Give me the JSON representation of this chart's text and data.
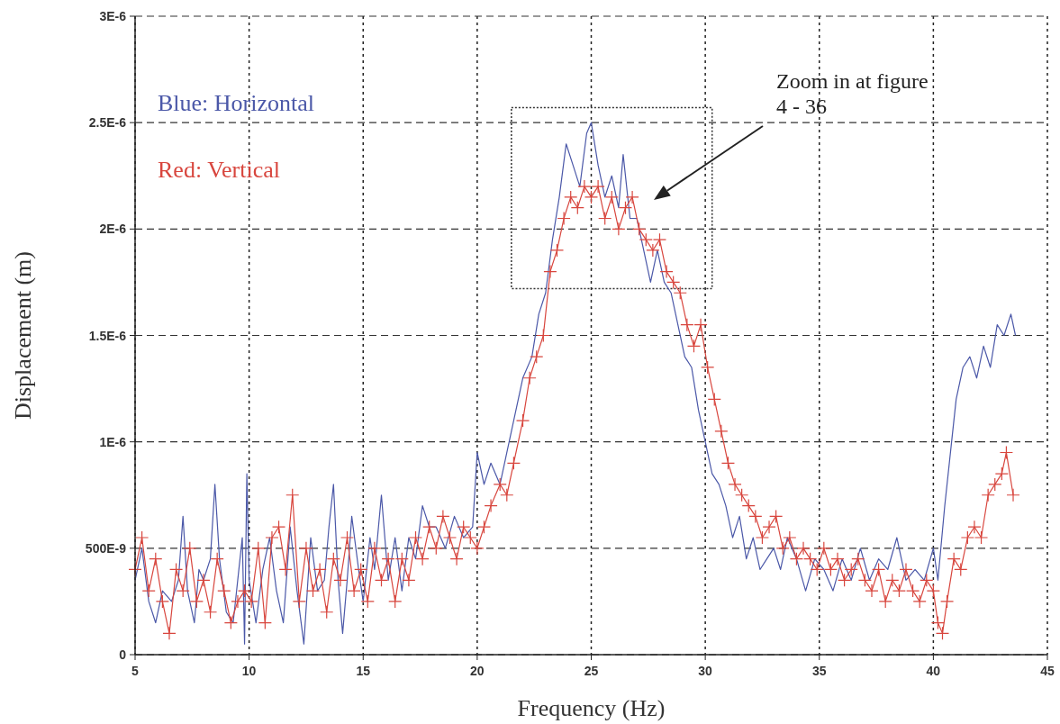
{
  "chart_data": {
    "type": "line",
    "xlabel": "Frequency (Hz)",
    "ylabel": "Displacement (m)",
    "xlim": [
      5,
      45
    ],
    "xticks": [
      5,
      10,
      15,
      20,
      25,
      30,
      35,
      40,
      45
    ],
    "ylim": [
      0,
      3e-06
    ],
    "yticks": [
      {
        "value": 0,
        "label": "0"
      },
      {
        "value": 5e-07,
        "label": "500E-9"
      },
      {
        "value": 1e-06,
        "label": "1E-6"
      },
      {
        "value": 1.5e-06,
        "label": "1.5E-6"
      },
      {
        "value": 2e-06,
        "label": "2E-6"
      },
      {
        "value": 2.5e-06,
        "label": "2.5E-6"
      },
      {
        "value": 3e-06,
        "label": "3E-6"
      }
    ],
    "grid": true,
    "legend": "top left",
    "line_style": "solid",
    "annotations": [
      "Zoom in at figure 4 - 36"
    ],
    "series": [
      {
        "name": "Blue: Horizontal",
        "color": "#4b58a8",
        "marker": "none",
        "x": [
          5.0,
          5.3,
          5.6,
          5.9,
          6.2,
          6.6,
          6.9,
          7.1,
          7.3,
          7.6,
          7.8,
          8.0,
          8.3,
          8.5,
          8.7,
          9.0,
          9.3,
          9.5,
          9.7,
          9.8,
          9.9,
          10.0,
          10.3,
          10.6,
          10.9,
          11.2,
          11.5,
          11.8,
          12.1,
          12.4,
          12.7,
          13.0,
          13.3,
          13.5,
          13.7,
          13.9,
          14.1,
          14.3,
          14.5,
          14.8,
          15.0,
          15.3,
          15.5,
          15.8,
          16.1,
          16.4,
          16.7,
          17.0,
          17.3,
          17.6,
          17.9,
          18.2,
          18.6,
          19.0,
          19.4,
          19.8,
          20.0,
          20.3,
          20.6,
          21.0,
          21.3,
          21.6,
          22.0,
          22.4,
          22.7,
          23.0,
          23.3,
          23.6,
          23.9,
          24.2,
          24.5,
          24.8,
          25.0,
          25.3,
          25.6,
          25.9,
          26.2,
          26.4,
          26.7,
          27.0,
          27.3,
          27.6,
          27.9,
          28.2,
          28.5,
          28.8,
          29.1,
          29.4,
          29.7,
          30.0,
          30.3,
          30.6,
          30.9,
          31.2,
          31.5,
          31.8,
          32.1,
          32.4,
          32.7,
          33.0,
          33.3,
          33.6,
          34.0,
          34.4,
          34.8,
          35.2,
          35.6,
          36.0,
          36.4,
          36.8,
          37.2,
          37.6,
          38.0,
          38.4,
          38.8,
          39.2,
          39.6,
          40.0,
          40.2,
          40.5,
          40.8,
          41.0,
          41.3,
          41.6,
          41.9,
          42.2,
          42.5,
          42.8,
          43.1,
          43.4,
          43.6
        ],
        "values": [
          3.5e-07,
          5e-07,
          2.5e-07,
          1.5e-07,
          3e-07,
          2.5e-07,
          3.5e-07,
          6.5e-07,
          3e-07,
          1.5e-07,
          4e-07,
          3.5e-07,
          4.5e-07,
          8e-07,
          4.5e-07,
          2e-07,
          1.5e-07,
          3.5e-07,
          5.5e-07,
          5e-08,
          8.5e-07,
          3.5e-07,
          1.5e-07,
          4e-07,
          5.5e-07,
          3e-07,
          1.5e-07,
          6e-07,
          3e-07,
          5e-08,
          5.5e-07,
          3e-07,
          3.5e-07,
          6e-07,
          8e-07,
          3.5e-07,
          1e-07,
          3.5e-07,
          6.5e-07,
          4e-07,
          2.5e-07,
          5.5e-07,
          4e-07,
          7.5e-07,
          3.5e-07,
          5.5e-07,
          3e-07,
          5.5e-07,
          4.5e-07,
          7e-07,
          6e-07,
          6e-07,
          5e-07,
          6.5e-07,
          5.5e-07,
          6e-07,
          9.5e-07,
          8e-07,
          9e-07,
          8e-07,
          9.5e-07,
          1.1e-06,
          1.3e-06,
          1.4e-06,
          1.6e-06,
          1.7e-06,
          1.95e-06,
          2.15e-06,
          2.4e-06,
          2.3e-06,
          2.2e-06,
          2.45e-06,
          2.5e-06,
          2.3e-06,
          2.15e-06,
          2.25e-06,
          2.1e-06,
          2.35e-06,
          2.05e-06,
          2.05e-06,
          1.9e-06,
          1.75e-06,
          1.9e-06,
          1.75e-06,
          1.7e-06,
          1.55e-06,
          1.4e-06,
          1.35e-06,
          1.15e-06,
          1e-06,
          8.5e-07,
          8e-07,
          7e-07,
          5.5e-07,
          6.5e-07,
          4.5e-07,
          5.5e-07,
          4e-07,
          4.5e-07,
          5e-07,
          4e-07,
          5.5e-07,
          4.5e-07,
          3e-07,
          4.5e-07,
          4e-07,
          3e-07,
          4.5e-07,
          3.5e-07,
          5e-07,
          3.5e-07,
          4.5e-07,
          4e-07,
          5.5e-07,
          3.5e-07,
          4e-07,
          3.5e-07,
          5e-07,
          3.5e-07,
          7e-07,
          1e-06,
          1.2e-06,
          1.35e-06,
          1.4e-06,
          1.3e-06,
          1.45e-06,
          1.35e-06,
          1.55e-06,
          1.5e-06,
          1.6e-06,
          1.5e-06
        ]
      },
      {
        "name": "Red: Vertical",
        "color": "#d8463e",
        "marker": "cross",
        "x": [
          5.0,
          5.3,
          5.6,
          5.9,
          6.2,
          6.5,
          6.8,
          7.1,
          7.4,
          7.7,
          8.0,
          8.3,
          8.6,
          8.9,
          9.2,
          9.5,
          9.8,
          10.1,
          10.4,
          10.7,
          11.0,
          11.3,
          11.6,
          11.9,
          12.2,
          12.5,
          12.8,
          13.1,
          13.4,
          13.7,
          14.0,
          14.3,
          14.6,
          14.9,
          15.2,
          15.5,
          15.8,
          16.1,
          16.4,
          16.7,
          17.0,
          17.3,
          17.6,
          17.9,
          18.2,
          18.5,
          18.8,
          19.1,
          19.4,
          19.7,
          20.0,
          20.3,
          20.6,
          21.0,
          21.3,
          21.6,
          22.0,
          22.3,
          22.6,
          22.9,
          23.2,
          23.5,
          23.8,
          24.1,
          24.4,
          24.7,
          25.0,
          25.3,
          25.6,
          25.9,
          26.2,
          26.5,
          26.8,
          27.1,
          27.4,
          27.7,
          28.0,
          28.3,
          28.6,
          28.9,
          29.2,
          29.5,
          29.8,
          30.1,
          30.4,
          30.7,
          31.0,
          31.3,
          31.6,
          31.9,
          32.2,
          32.5,
          32.8,
          33.1,
          33.4,
          33.7,
          34.0,
          34.3,
          34.6,
          34.9,
          35.2,
          35.5,
          35.8,
          36.1,
          36.4,
          36.7,
          37.0,
          37.3,
          37.6,
          37.9,
          38.2,
          38.5,
          38.8,
          39.1,
          39.4,
          39.7,
          40.0,
          40.2,
          40.4,
          40.6,
          40.9,
          41.2,
          41.5,
          41.8,
          42.1,
          42.4,
          42.7,
          43.0,
          43.2,
          43.5
        ],
        "values": [
          4e-07,
          5.5e-07,
          3e-07,
          4.5e-07,
          2.5e-07,
          1e-07,
          4e-07,
          3e-07,
          5e-07,
          2.5e-07,
          3.5e-07,
          2e-07,
          4.5e-07,
          3e-07,
          1.5e-07,
          2.5e-07,
          3e-07,
          2.5e-07,
          5e-07,
          1.5e-07,
          5.5e-07,
          6e-07,
          4e-07,
          7.5e-07,
          2.5e-07,
          5e-07,
          3e-07,
          4e-07,
          2e-07,
          4.5e-07,
          3.5e-07,
          5.5e-07,
          3e-07,
          4e-07,
          2.5e-07,
          5e-07,
          3.5e-07,
          4.5e-07,
          2.5e-07,
          4.5e-07,
          3.5e-07,
          5.5e-07,
          4.5e-07,
          6e-07,
          5e-07,
          6.5e-07,
          5.5e-07,
          4.5e-07,
          6e-07,
          5.5e-07,
          5e-07,
          6e-07,
          7e-07,
          8e-07,
          7.5e-07,
          9e-07,
          1.1e-06,
          1.3e-06,
          1.4e-06,
          1.5e-06,
          1.8e-06,
          1.9e-06,
          2.05e-06,
          2.15e-06,
          2.1e-06,
          2.2e-06,
          2.15e-06,
          2.2e-06,
          2.05e-06,
          2.15e-06,
          2e-06,
          2.1e-06,
          2.15e-06,
          2e-06,
          1.95e-06,
          1.9e-06,
          1.95e-06,
          1.8e-06,
          1.75e-06,
          1.7e-06,
          1.55e-06,
          1.45e-06,
          1.55e-06,
          1.35e-06,
          1.2e-06,
          1.05e-06,
          9e-07,
          8e-07,
          7.5e-07,
          7e-07,
          6.5e-07,
          5.5e-07,
          6e-07,
          6.5e-07,
          5e-07,
          5.5e-07,
          4.5e-07,
          5e-07,
          4.5e-07,
          4e-07,
          5e-07,
          4e-07,
          4.5e-07,
          3.5e-07,
          4e-07,
          4.5e-07,
          3.5e-07,
          3e-07,
          4e-07,
          2.5e-07,
          3.5e-07,
          3e-07,
          4e-07,
          3e-07,
          2.5e-07,
          3.5e-07,
          3e-07,
          1.5e-07,
          1e-07,
          2.5e-07,
          4.5e-07,
          4e-07,
          5.5e-07,
          6e-07,
          5.5e-07,
          7.5e-07,
          8e-07,
          8.5e-07,
          9.5e-07,
          7.5e-07
        ]
      }
    ]
  }
}
